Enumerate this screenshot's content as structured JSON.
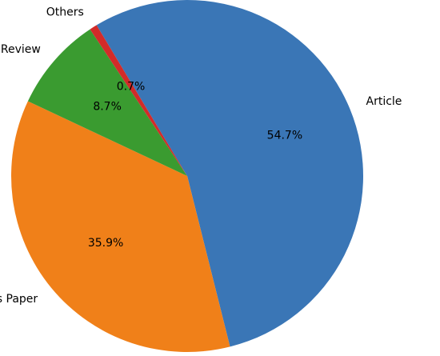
{
  "chart_data": {
    "type": "pie",
    "title": "",
    "start_angle_deg": 121,
    "direction": "clockwise",
    "slices": [
      {
        "label": "Article",
        "value": 54.7,
        "pct_label": "54.7%",
        "color": "#3a76b6"
      },
      {
        "label": "Proceedings Paper",
        "value": 35.9,
        "pct_label": "35.9%",
        "color": "#f08019"
      },
      {
        "label": "Review",
        "value": 8.7,
        "pct_label": "8.7%",
        "color": "#3a9b30"
      },
      {
        "label": "Others",
        "value": 0.7,
        "pct_label": "0.7%",
        "color": "#d22b29"
      }
    ],
    "legend": "none"
  }
}
